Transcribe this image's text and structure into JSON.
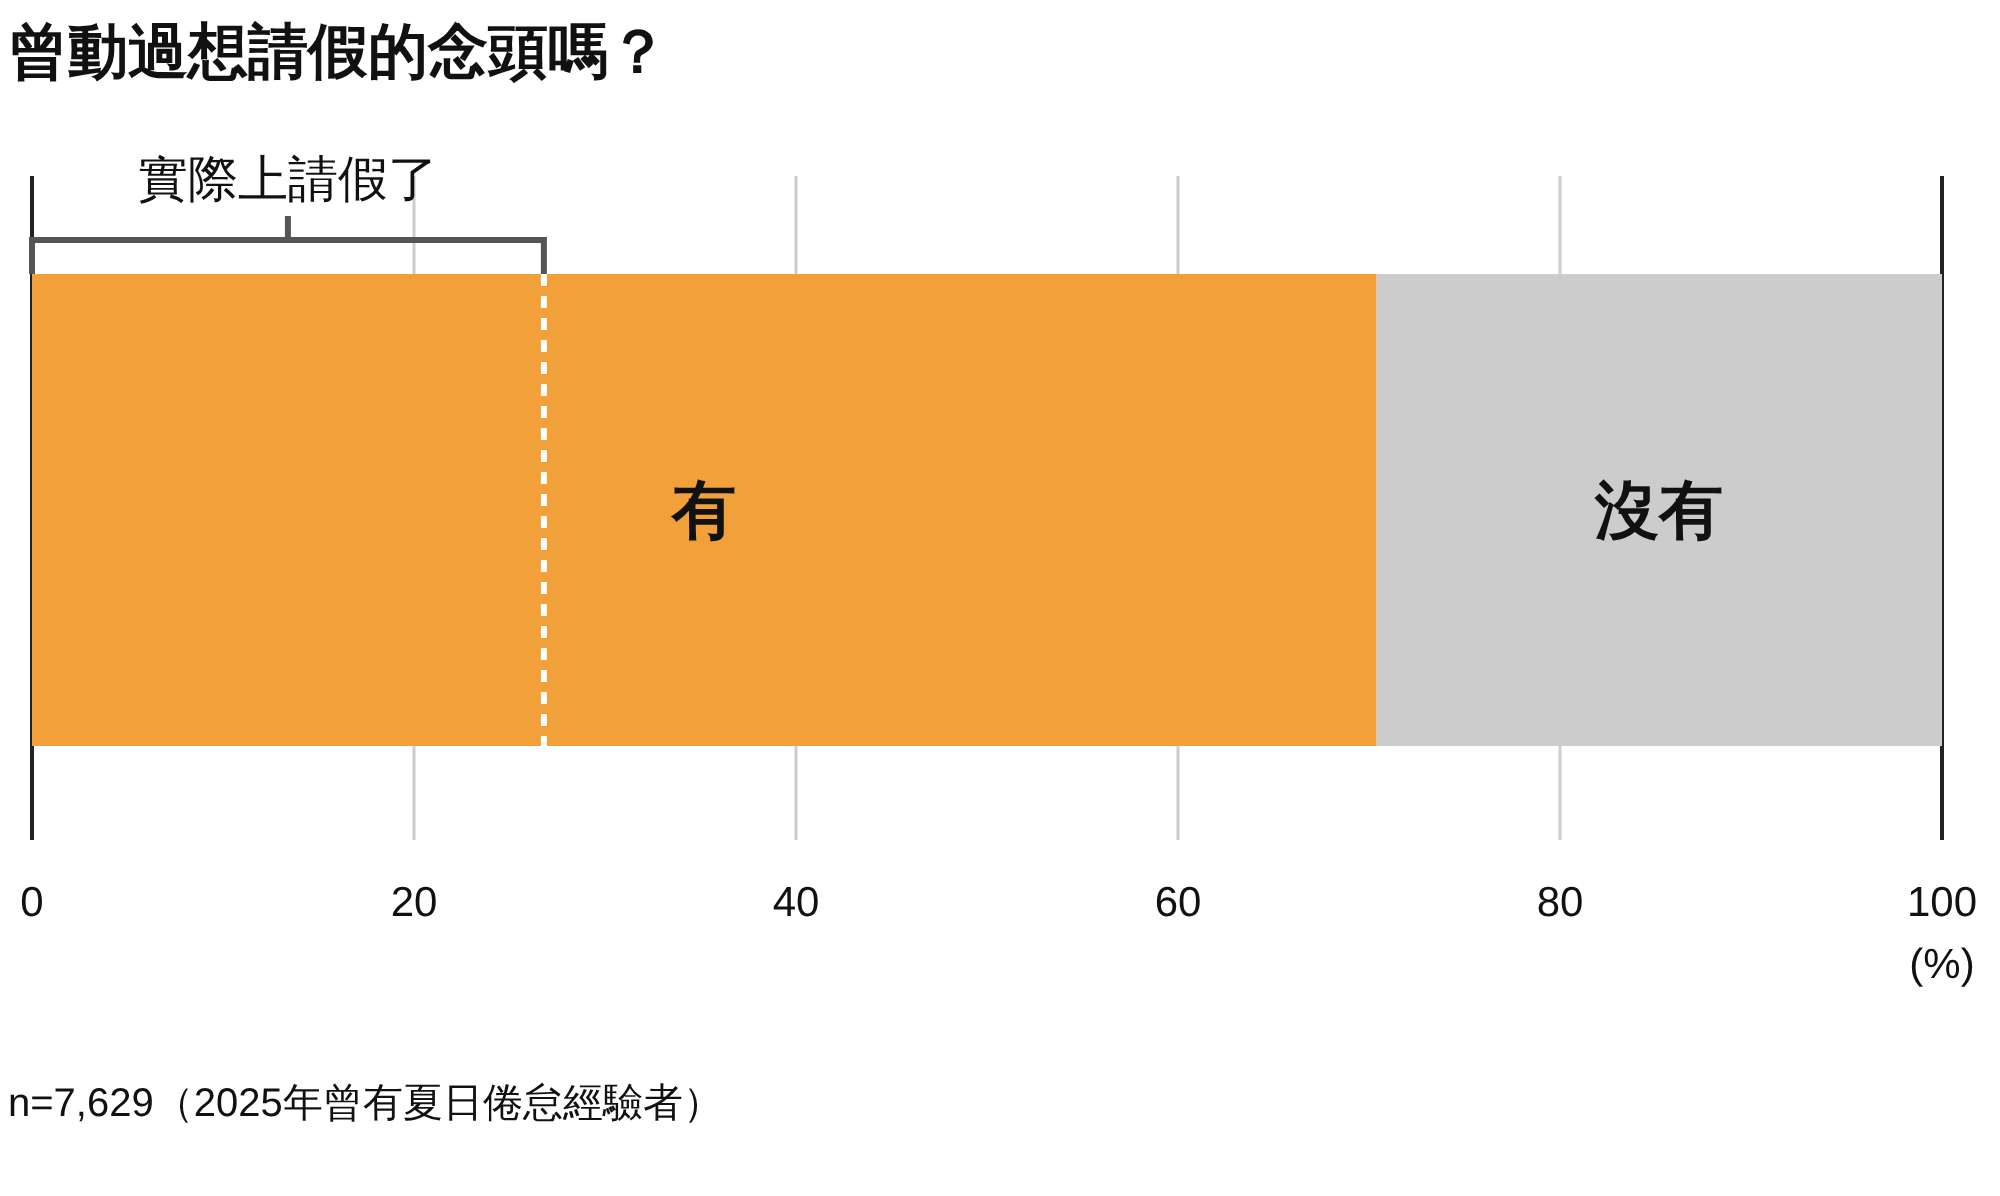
{
  "chart_data": {
    "type": "bar",
    "orientation": "horizontal",
    "stacked": true,
    "title": "曾動過想請假的念頭嗎？",
    "xlabel": "(%)",
    "categories": [
      null
    ],
    "series": [
      {
        "name": "有",
        "color": "#f2a03a",
        "values": [
          70.4
        ]
      },
      {
        "name": "沒有",
        "color": "#cccccc",
        "values": [
          29.6
        ]
      }
    ],
    "xlim": [
      0,
      100
    ],
    "xticks": [
      0,
      20,
      40,
      60,
      80,
      100
    ],
    "grid": "x",
    "ref_lines": [
      {
        "axis": "x",
        "value": 26.8,
        "label": "實際上請假了",
        "color": "#ffffff",
        "line_style": "dashed"
      }
    ],
    "annotations": [
      "n=7,629（2025年曾有夏日倦怠經驗者）"
    ]
  }
}
